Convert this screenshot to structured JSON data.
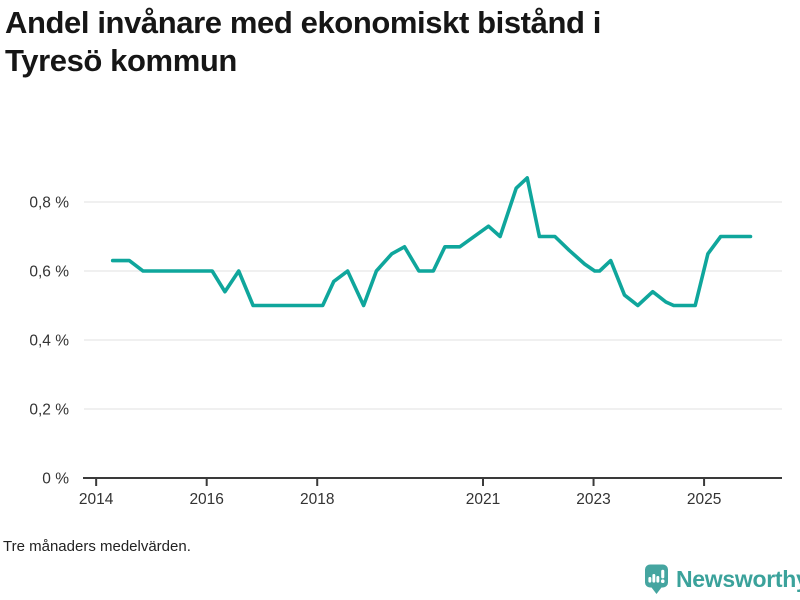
{
  "page": {
    "footnote": "Tre månaders medelvärden.",
    "brand": {
      "name": "Newsworthy",
      "icon": "newsworthy-speech-bubble-barchart-icon",
      "color": "#3BA29B",
      "icon_color": "#45A5A0"
    }
  },
  "chart_data": {
    "type": "line",
    "title": "Andel invånare med ekonomiskt bistånd i Tyresö kommun",
    "title_lines": [
      "Andel invånare med ekonomiskt bistånd i",
      "Tyresö kommun"
    ],
    "footnote": "Tre månaders medelvärden.",
    "unit": "%",
    "decimal_separator": ",",
    "grid": true,
    "legend": "none",
    "xlim": [
      2013.78,
      2026.41
    ],
    "ylim": [
      0,
      1.0
    ],
    "xticks": [
      {
        "value": 2014,
        "label": "2014"
      },
      {
        "value": 2016,
        "label": "2016"
      },
      {
        "value": 2018,
        "label": "2018"
      },
      {
        "value": 2021,
        "label": "2021"
      },
      {
        "value": 2023,
        "label": "2023"
      },
      {
        "value": 2025,
        "label": "2025"
      }
    ],
    "yticks": [
      {
        "value": 0,
        "label": "0 %"
      },
      {
        "value": 0.2,
        "label": "0,2 %"
      },
      {
        "value": 0.4,
        "label": "0,4 %"
      },
      {
        "value": 0.6,
        "label": "0,6 %"
      },
      {
        "value": 0.8,
        "label": "0,8 %"
      }
    ],
    "colors": {
      "line": "#0FA69C",
      "axis": "#3A3A3A",
      "gridline": "#E1E1E1",
      "tick_label": "#333333"
    },
    "series": [
      {
        "name": "Andel invånare med ekonomiskt bistånd (%)",
        "color": "#0FA69C",
        "points": [
          [
            2014.3,
            0.63
          ],
          [
            2014.6,
            0.63
          ],
          [
            2014.85,
            0.6
          ],
          [
            2016.1,
            0.6
          ],
          [
            2016.33,
            0.54
          ],
          [
            2016.58,
            0.6
          ],
          [
            2016.84,
            0.5
          ],
          [
            2018.1,
            0.5
          ],
          [
            2018.3,
            0.57
          ],
          [
            2018.55,
            0.6
          ],
          [
            2018.84,
            0.5
          ],
          [
            2019.07,
            0.6
          ],
          [
            2019.35,
            0.65
          ],
          [
            2019.58,
            0.67
          ],
          [
            2019.84,
            0.6
          ],
          [
            2020.1,
            0.6
          ],
          [
            2020.31,
            0.67
          ],
          [
            2020.58,
            0.67
          ],
          [
            2021.1,
            0.73
          ],
          [
            2021.31,
            0.7
          ],
          [
            2021.6,
            0.84
          ],
          [
            2021.8,
            0.87
          ],
          [
            2022.02,
            0.7
          ],
          [
            2022.3,
            0.7
          ],
          [
            2022.56,
            0.66
          ],
          [
            2022.84,
            0.62
          ],
          [
            2023.02,
            0.6
          ],
          [
            2023.11,
            0.6
          ],
          [
            2023.31,
            0.63
          ],
          [
            2023.56,
            0.53
          ],
          [
            2023.8,
            0.5
          ],
          [
            2024.07,
            0.54
          ],
          [
            2024.31,
            0.51
          ],
          [
            2024.45,
            0.5
          ],
          [
            2024.84,
            0.5
          ],
          [
            2025.07,
            0.65
          ],
          [
            2025.3,
            0.7
          ],
          [
            2025.84,
            0.7
          ]
        ]
      }
    ]
  }
}
